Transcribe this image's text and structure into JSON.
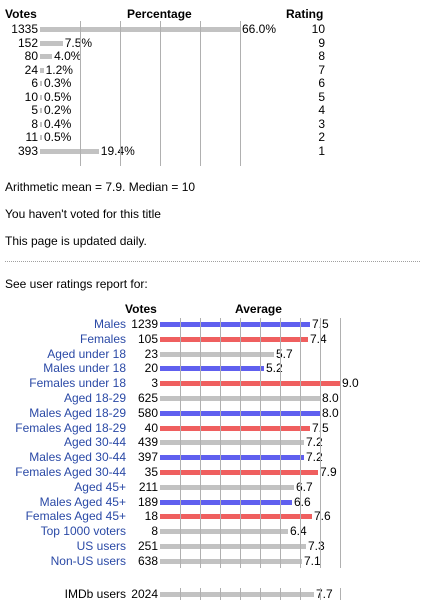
{
  "colors": {
    "male": "#6060ef",
    "female": "#ef5f5f",
    "neutral": "#c2c2c2",
    "link": "#2a49a6"
  },
  "top_table": {
    "headers": {
      "votes": "Votes",
      "percentage": "Percentage",
      "rating": "Rating"
    },
    "rows": [
      {
        "votes": "1335",
        "percent": "66.0%",
        "share": 0.66,
        "rating": "10"
      },
      {
        "votes": "152",
        "percent": "7.5%",
        "share": 0.075,
        "rating": "9"
      },
      {
        "votes": "80",
        "percent": "4.0%",
        "share": 0.04,
        "rating": "8"
      },
      {
        "votes": "24",
        "percent": "1.2%",
        "share": 0.012,
        "rating": "7"
      },
      {
        "votes": "6",
        "percent": "0.3%",
        "share": 0.003,
        "rating": "6"
      },
      {
        "votes": "10",
        "percent": "0.5%",
        "share": 0.005,
        "rating": "5"
      },
      {
        "votes": "5",
        "percent": "0.2%",
        "share": 0.002,
        "rating": "4"
      },
      {
        "votes": "8",
        "percent": "0.4%",
        "share": 0.004,
        "rating": "3"
      },
      {
        "votes": "11",
        "percent": "0.5%",
        "share": 0.005,
        "rating": "2"
      },
      {
        "votes": "393",
        "percent": "19.4%",
        "share": 0.194,
        "rating": "1"
      }
    ]
  },
  "stats_line": "Arithmetic mean = 7.9.  Median = 10",
  "vote_status": "You haven't voted for this title",
  "update_note": "This page is updated daily.",
  "report_intro": "See user ratings report for:",
  "breakdown": {
    "headers": {
      "votes": "Votes",
      "average": "Average"
    },
    "rows": [
      {
        "label": "Males",
        "votes": "1239",
        "average": "7.5",
        "group": "male"
      },
      {
        "label": "Females",
        "votes": "105",
        "average": "7.4",
        "group": "female"
      },
      {
        "label": "Aged under 18",
        "votes": "23",
        "average": "5.7",
        "group": "neutral"
      },
      {
        "label": "Males under 18",
        "votes": "20",
        "average": "5.2",
        "group": "male"
      },
      {
        "label": "Females under 18",
        "votes": "3",
        "average": "9.0",
        "group": "female"
      },
      {
        "label": "Aged 18-29",
        "votes": "625",
        "average": "8.0",
        "group": "neutral"
      },
      {
        "label": "Males Aged 18-29",
        "votes": "580",
        "average": "8.0",
        "group": "male"
      },
      {
        "label": "Females Aged 18-29",
        "votes": "40",
        "average": "7.5",
        "group": "female"
      },
      {
        "label": "Aged 30-44",
        "votes": "439",
        "average": "7.2",
        "group": "neutral"
      },
      {
        "label": "Males Aged 30-44",
        "votes": "397",
        "average": "7.2",
        "group": "male"
      },
      {
        "label": "Females Aged 30-44",
        "votes": "35",
        "average": "7.9",
        "group": "female"
      },
      {
        "label": "Aged 45+",
        "votes": "211",
        "average": "6.7",
        "group": "neutral"
      },
      {
        "label": "Males Aged 45+",
        "votes": "189",
        "average": "6.6",
        "group": "male"
      },
      {
        "label": "Females Aged 45+",
        "votes": "18",
        "average": "7.6",
        "group": "female"
      },
      {
        "label": "Top 1000 voters",
        "votes": "8",
        "average": "6.4",
        "group": "neutral"
      },
      {
        "label": "US users",
        "votes": "251",
        "average": "7.3",
        "group": "neutral"
      },
      {
        "label": "Non-US users",
        "votes": "638",
        "average": "7.1",
        "group": "neutral"
      }
    ],
    "footer": {
      "label": "IMDb users",
      "votes": "2024",
      "average": "7.7",
      "group": "neutral"
    }
  }
}
